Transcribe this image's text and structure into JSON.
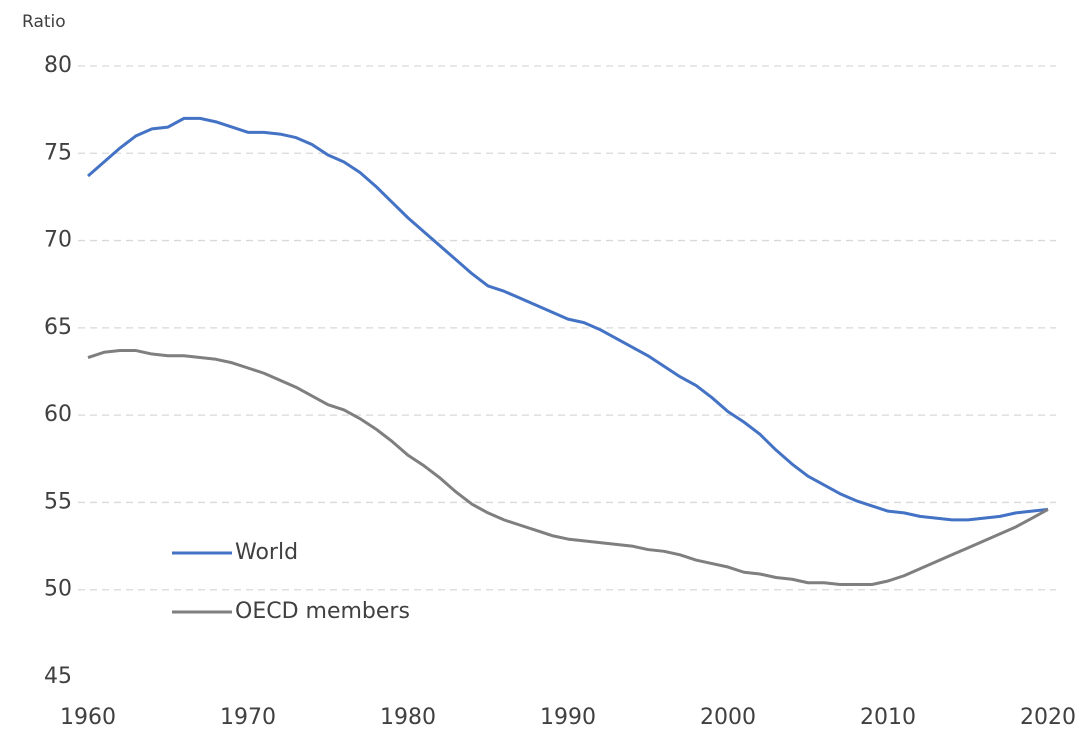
{
  "chart_data": {
    "type": "line",
    "y_label": "Ratio",
    "x": [
      1960,
      1961,
      1962,
      1963,
      1964,
      1965,
      1966,
      1967,
      1968,
      1969,
      1970,
      1971,
      1972,
      1973,
      1974,
      1975,
      1976,
      1977,
      1978,
      1979,
      1980,
      1981,
      1982,
      1983,
      1984,
      1985,
      1986,
      1987,
      1988,
      1989,
      1990,
      1991,
      1992,
      1993,
      1994,
      1995,
      1996,
      1997,
      1998,
      1999,
      2000,
      2001,
      2002,
      2003,
      2004,
      2005,
      2006,
      2007,
      2008,
      2009,
      2010,
      2011,
      2012,
      2013,
      2014,
      2015,
      2016,
      2017,
      2018,
      2019,
      2020
    ],
    "series": [
      {
        "name": "World",
        "color": "#4472c4",
        "values": [
          73.7,
          74.5,
          75.3,
          76.0,
          76.4,
          76.5,
          77.0,
          77.0,
          76.8,
          76.5,
          76.2,
          76.2,
          76.1,
          75.9,
          75.5,
          74.9,
          74.5,
          73.9,
          73.1,
          72.2,
          71.3,
          70.5,
          69.7,
          68.9,
          68.1,
          67.4,
          67.1,
          66.7,
          66.3,
          65.9,
          65.5,
          65.3,
          64.9,
          64.4,
          63.9,
          63.4,
          62.8,
          62.2,
          61.7,
          61.0,
          60.2,
          59.6,
          58.9,
          58.0,
          57.2,
          56.5,
          56.0,
          55.5,
          55.1,
          54.8,
          54.5,
          54.4,
          54.2,
          54.1,
          54.0,
          54.0,
          54.1,
          54.2,
          54.4,
          54.5,
          54.6
        ]
      },
      {
        "name": "OECD members",
        "color": "#7f7f7f",
        "values": [
          63.3,
          63.6,
          63.7,
          63.7,
          63.5,
          63.4,
          63.4,
          63.3,
          63.2,
          63.0,
          62.7,
          62.4,
          62.0,
          61.6,
          61.1,
          60.6,
          60.3,
          59.8,
          59.2,
          58.5,
          57.7,
          57.1,
          56.4,
          55.6,
          54.9,
          54.4,
          54.0,
          53.7,
          53.4,
          53.1,
          52.9,
          52.8,
          52.7,
          52.6,
          52.5,
          52.3,
          52.2,
          52.0,
          51.7,
          51.5,
          51.3,
          51.0,
          50.9,
          50.7,
          50.6,
          50.4,
          50.4,
          50.3,
          50.3,
          50.3,
          50.5,
          50.8,
          51.2,
          51.6,
          52.0,
          52.4,
          52.8,
          53.2,
          53.6,
          54.1,
          54.6
        ]
      }
    ],
    "xlim": [
      1960,
      2020
    ],
    "xticks": [
      1960,
      1970,
      1980,
      1990,
      2000,
      2010,
      2020
    ],
    "ylim": [
      45,
      80
    ],
    "yticks": [
      45,
      50,
      55,
      60,
      65,
      70,
      75,
      80
    ],
    "grid": true,
    "legend": "lower left"
  }
}
